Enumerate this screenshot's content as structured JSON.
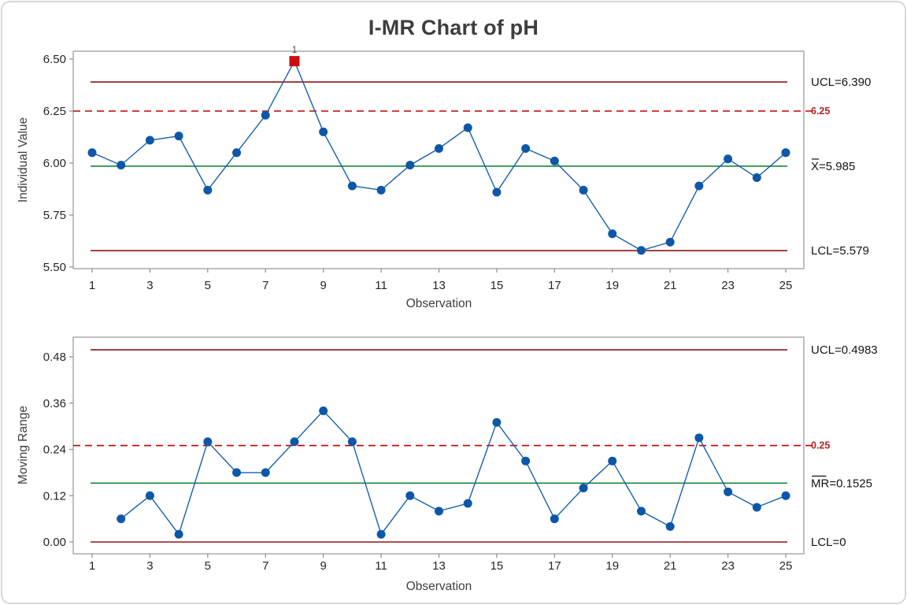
{
  "title": "I-MR Chart of pH",
  "colors": {
    "point_blue": "#0d57a6",
    "line_blue": "#1560ac",
    "center_green": "#18863c",
    "limit_maroon": "#8c1717",
    "spec_red": "#c00000",
    "spec_label_red": "#b42121",
    "flag_red": "#cc0d0d",
    "frame_gray": "#a6a6a6",
    "tick_gray": "#8c8c8c"
  },
  "chart_data": [
    {
      "type": "line",
      "name": "individuals",
      "ylabel": "Individual Value",
      "xlabel": "Observation",
      "x": [
        1,
        2,
        3,
        4,
        5,
        6,
        7,
        8,
        9,
        10,
        11,
        12,
        13,
        14,
        15,
        16,
        17,
        18,
        19,
        20,
        21,
        22,
        23,
        24,
        25
      ],
      "values": [
        6.05,
        5.99,
        6.11,
        6.13,
        5.87,
        6.05,
        6.23,
        6.49,
        6.15,
        5.89,
        5.87,
        5.99,
        6.07,
        6.17,
        5.86,
        6.07,
        6.01,
        5.87,
        5.66,
        5.58,
        5.62,
        5.89,
        6.02,
        5.93,
        6.05
      ],
      "ylim": [
        5.5,
        6.5
      ],
      "yticks": [
        {
          "v": 6.5,
          "label": "6.50"
        },
        {
          "v": 6.25,
          "label": "6.25"
        },
        {
          "v": 6.0,
          "label": "6.00"
        },
        {
          "v": 5.75,
          "label": "5.75"
        },
        {
          "v": 5.5,
          "label": "5.50"
        }
      ],
      "xticks": [
        1,
        3,
        5,
        7,
        9,
        11,
        13,
        15,
        17,
        19,
        21,
        23,
        25
      ],
      "center": 5.985,
      "ucl": 6.39,
      "lcl": 5.579,
      "spec": 6.25,
      "labels": {
        "ucl": "UCL=6.390",
        "center": "X=5.985",
        "center_bar": "X",
        "lcl": "LCL=5.579",
        "spec": "6.25"
      },
      "flags": [
        {
          "x": 8,
          "label": "1"
        }
      ]
    },
    {
      "type": "line",
      "name": "moving-range",
      "ylabel": "Moving Range",
      "xlabel": "Observation",
      "x": [
        2,
        3,
        4,
        5,
        6,
        7,
        8,
        9,
        10,
        11,
        12,
        13,
        14,
        15,
        16,
        17,
        18,
        19,
        20,
        21,
        22,
        23,
        24,
        25
      ],
      "values": [
        0.06,
        0.12,
        0.02,
        0.26,
        0.18,
        0.18,
        0.26,
        0.34,
        0.26,
        0.02,
        0.12,
        0.08,
        0.1,
        0.31,
        0.21,
        0.06,
        0.14,
        0.21,
        0.08,
        0.04,
        0.27,
        0.13,
        0.09,
        0.12
      ],
      "ylim": [
        0.0,
        0.48
      ],
      "yticks": [
        {
          "v": 0.48,
          "label": "0.48"
        },
        {
          "v": 0.36,
          "label": "0.36"
        },
        {
          "v": 0.24,
          "label": "0.24"
        },
        {
          "v": 0.12,
          "label": "0.12"
        },
        {
          "v": 0.0,
          "label": "0.00"
        }
      ],
      "xticks": [
        1,
        3,
        5,
        7,
        9,
        11,
        13,
        15,
        17,
        19,
        21,
        23,
        25
      ],
      "center": 0.1525,
      "ucl": 0.4983,
      "lcl": 0,
      "spec": 0.25,
      "labels": {
        "ucl": "UCL=0.4983",
        "center": "MR=0.1525",
        "center_bar": "MR",
        "lcl": "LCL=0",
        "spec": "0.25"
      },
      "flags": []
    }
  ]
}
